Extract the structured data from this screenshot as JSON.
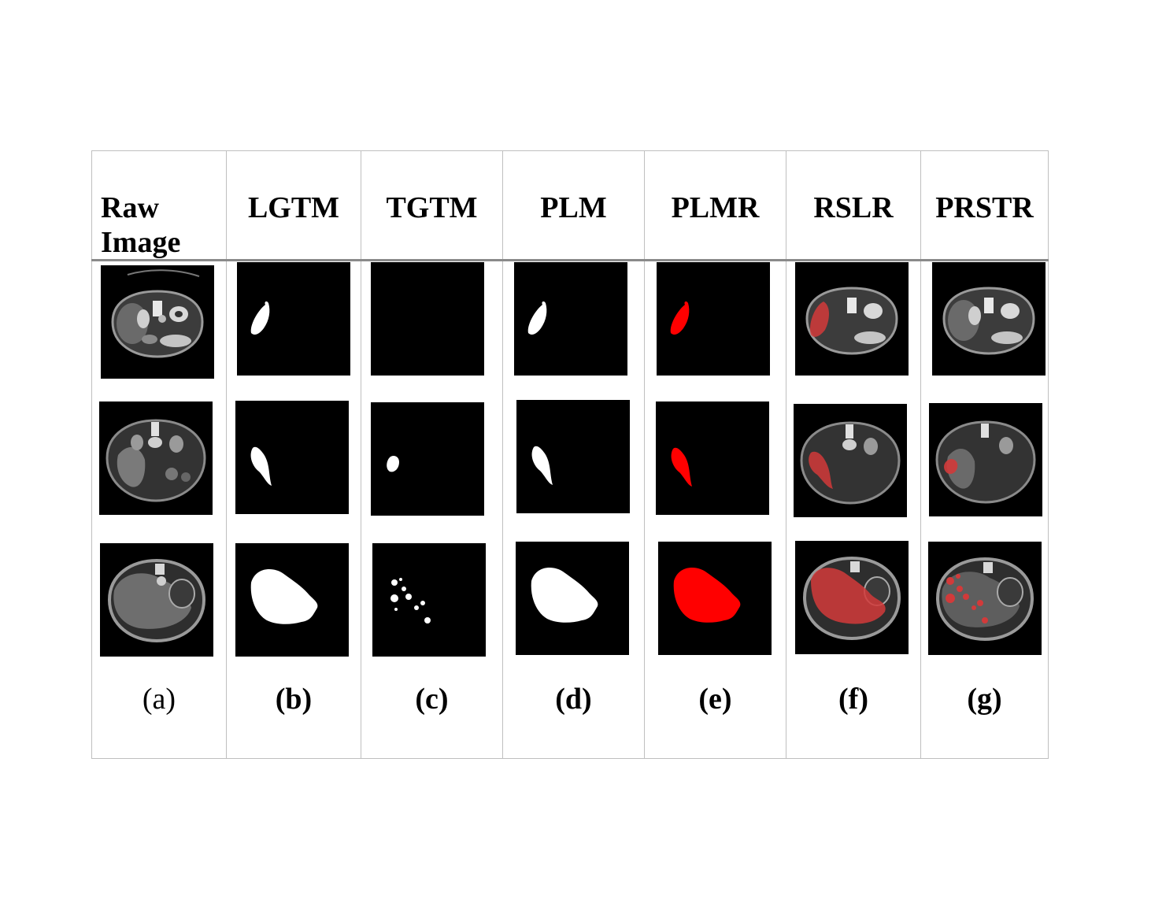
{
  "headers": [
    "Raw Image",
    "LGTM",
    "TGTM",
    "PLM",
    "PLMR",
    "RSLR",
    "PRSTR"
  ],
  "raw_header_lines": [
    "Raw",
    "Image"
  ],
  "captions": [
    "(a)",
    "(b)",
    "(c)",
    "(d)",
    "(e)",
    "(f)",
    "(g)"
  ],
  "colors": {
    "mask": "#ffffff",
    "mask_red": "#ff0000",
    "overlay": "#d23a3a",
    "background": "#000000",
    "grid": "#bfbfbf"
  }
}
